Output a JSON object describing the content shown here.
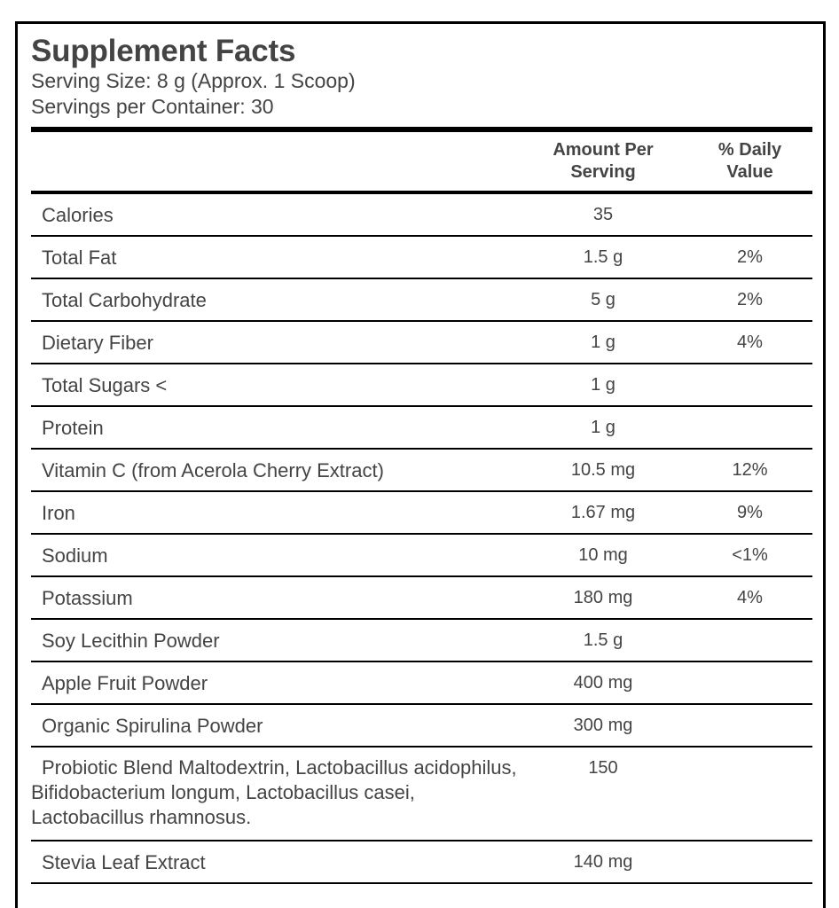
{
  "label": {
    "title": "Supplement Facts",
    "serving_size": "Serving Size: 8 g (Approx. 1 Scoop)",
    "servings_per_container": "Servings per Container: 30"
  },
  "table": {
    "headers": {
      "name": "",
      "amount_line1": "Amount Per",
      "amount_line2": "Serving",
      "dv_line1": "% Daily",
      "dv_line2": "Value"
    },
    "rows": [
      {
        "name": "Calories",
        "amount": "35",
        "dv": ""
      },
      {
        "name": "Total Fat",
        "amount": "1.5 g",
        "dv": "2%"
      },
      {
        "name": "Total Carbohydrate",
        "amount": "5 g",
        "dv": "2%"
      },
      {
        "name": "Dietary Fiber",
        "amount": "1 g",
        "dv": "4%"
      },
      {
        "name": "Total Sugars <",
        "amount": "1 g",
        "dv": ""
      },
      {
        "name": "Protein",
        "amount": "1 g",
        "dv": ""
      },
      {
        "name": "Vitamin C (from Acerola Cherry Extract)",
        "amount": "10.5 mg",
        "dv": "12%"
      },
      {
        "name": "Iron",
        "amount": "1.67 mg",
        "dv": "9%"
      },
      {
        "name": "Sodium",
        "amount": "10 mg",
        "dv": "<1%"
      },
      {
        "name": "Potassium",
        "amount": "180 mg",
        "dv": "4%"
      },
      {
        "name": "Soy Lecithin Powder",
        "amount": "1.5 g",
        "dv": ""
      },
      {
        "name": "Apple Fruit Powder",
        "amount": "400 mg",
        "dv": ""
      },
      {
        "name": "Organic Spirulina Powder",
        "amount": "300 mg",
        "dv": ""
      },
      {
        "name": "Probiotic Blend Maltodextrin, Lactobacillus acidophilus, Bifidobacterium longum, Lactobacillus casei, Lactobacillus rhamnosus.",
        "amount": "150",
        "dv": ""
      },
      {
        "name": "Stevia Leaf Extract",
        "amount": "140 mg",
        "dv": ""
      }
    ]
  }
}
